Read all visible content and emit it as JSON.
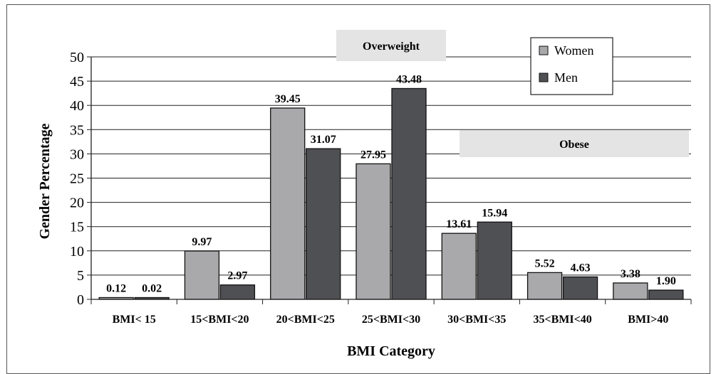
{
  "chart_data": {
    "type": "bar",
    "categories": [
      "BMI< 15",
      "15<BMI<20",
      "20<BMI<25",
      "25<BMI<30",
      "30<BMI<35",
      "35<BMI<40",
      "BMI>40"
    ],
    "series": [
      {
        "name": "Women",
        "values": [
          0.12,
          9.97,
          39.45,
          27.95,
          13.61,
          5.52,
          3.38
        ],
        "labels": [
          "0.12",
          "9.97",
          "39.45",
          "27.95",
          "13.61",
          "5.52",
          "3.38"
        ],
        "color": "#a9a9ab"
      },
      {
        "name": "Men",
        "values": [
          0.02,
          2.97,
          31.07,
          43.48,
          15.94,
          4.63,
          1.9
        ],
        "labels": [
          "0.02",
          "2.97",
          "31.07",
          "43.48",
          "15.94",
          "4.63",
          "1.90"
        ],
        "color": "#4f5053"
      }
    ],
    "xlabel": "BMI Category",
    "ylabel": "Gender Percentage",
    "ylim": [
      0,
      50
    ],
    "yticks": [
      0,
      5,
      10,
      15,
      20,
      25,
      30,
      35,
      40,
      45,
      50
    ],
    "grid": true,
    "legend": "top-right",
    "annotations": [
      {
        "text": "Overweight",
        "spans_categories": [
          "25<BMI<30"
        ]
      },
      {
        "text": "Obese",
        "spans_categories": [
          "30<BMI<35",
          "35<BMI<40",
          "BMI>40"
        ]
      }
    ]
  }
}
